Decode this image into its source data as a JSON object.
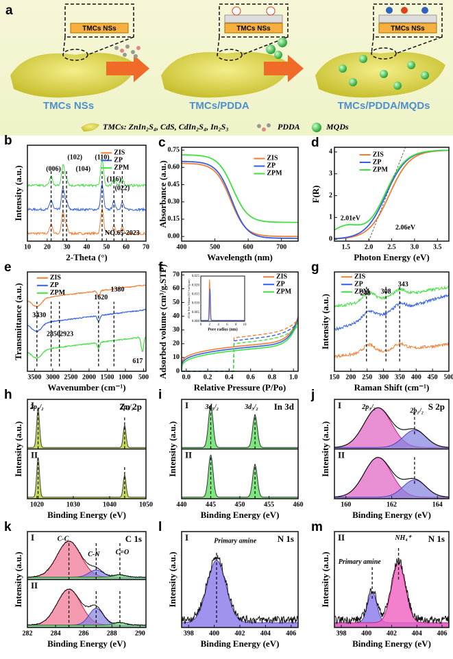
{
  "figure": {
    "a": {
      "label": "a",
      "boxes": [
        "TMCs NSs",
        "TMCs NSs",
        "TMCs NSs"
      ],
      "captions": [
        "TMCs NSs",
        "TMCs/PDDA",
        "TMCs/PDDA/MQDs"
      ],
      "legend": [
        "TMCs: ZnIn₂S₄, CdS, CdIn₂S₄, In₂S₃",
        "PDDA",
        "MQDs"
      ]
    },
    "plots": [
      {
        "label": "b",
        "xlabel": "2-Theta (°)",
        "ylabel": "Intensity (a.u.)",
        "xticks": [
          10,
          20,
          30,
          40,
          50,
          60,
          70
        ],
        "legend": [
          "ZIS",
          "ZP",
          "ZPM"
        ],
        "notes": [
          "(006)",
          "(102)",
          "(104)",
          "(110)",
          "(116)",
          "(022)",
          "NO.65-2023"
        ]
      },
      {
        "label": "c",
        "xlabel": "Wavelength (nm)",
        "ylabel": "Absorbance (a.u.)",
        "xticks": [
          400,
          500,
          600,
          700
        ],
        "yticks": [
          "0.00",
          "0.15",
          "0.30",
          "0.45",
          "0.60",
          "0.75"
        ],
        "legend": [
          "ZIS",
          "ZP",
          "ZPM"
        ]
      },
      {
        "label": "d",
        "xlabel": "Photon Energy (eV)",
        "ylabel": "F(R)",
        "xticks": [
          1.5,
          "2.0",
          2.5,
          "3.0",
          3.5
        ],
        "yticks": [
          0,
          1,
          2,
          3,
          4
        ],
        "legend": [
          "ZIS",
          "ZP",
          "ZPM"
        ],
        "notes": [
          "2.01eV",
          "2.06eV"
        ]
      },
      {
        "label": "e",
        "xlabel": "Wavenumber (cm⁻¹)",
        "ylabel": "Transmittance (a.u.)",
        "xticks": [
          3500,
          3000,
          2500,
          2000,
          1500,
          1000,
          500
        ],
        "legend": [
          "ZIS",
          "ZP",
          "ZPM"
        ],
        "notes": [
          "3430",
          "2850",
          "2923",
          "1620",
          "1380",
          "617"
        ]
      },
      {
        "label": "f",
        "xlabel": "Relative Pressure (P/Po)",
        "ylabel": "Adsorbed volume (cm³/g.STP)",
        "xticks": [
          "0.0",
          0.2,
          0.4,
          0.6,
          0.8,
          "1.0"
        ],
        "yticks": [
          0,
          10,
          20,
          30,
          40,
          50,
          60,
          70
        ],
        "legend": [
          "ZIS",
          "ZP",
          "ZPM"
        ],
        "inset": {
          "xlabel": "Pore radius (nm)",
          "ylabel": "dV/dr Pore Volume (10⁻³cm³/g.nm)",
          "xticks": [
            0,
            2,
            4,
            6,
            8,
            10
          ],
          "yticks": [
            "0.000",
            "0.005",
            "0.010",
            "0.015",
            "0.020",
            "0.025"
          ]
        }
      },
      {
        "label": "g",
        "xlabel": "Raman Shift (cm⁻¹)",
        "ylabel": "Intensity (a.u.)",
        "xticks": [
          150,
          200,
          250,
          300,
          350,
          400,
          450,
          500
        ],
        "legend": [
          "ZIS",
          "ZP",
          "ZPM"
        ],
        "notes": [
          "248",
          "308",
          "343"
        ]
      },
      {
        "label": "h",
        "title": "Zn 2p",
        "xlabel": "Binding Energy (eV)",
        "ylabel": "Intensity (a.u.)",
        "xticks": [
          1020,
          1030,
          1040,
          1050
        ],
        "sub": [
          "I",
          "II"
        ],
        "notes": [
          "2p₃/₂",
          "2p₁/₂"
        ]
      },
      {
        "label": "i",
        "title": "In 3d",
        "xlabel": "Binding Energy (eV)",
        "ylabel": "Intensity (a.u.)",
        "xticks": [
          440,
          445,
          450,
          455,
          460
        ],
        "sub": [
          "I",
          "II"
        ],
        "notes": [
          "3d₅/₂",
          "3d₃/₂"
        ]
      },
      {
        "label": "j",
        "title": "S 2p",
        "xlabel": "Binding Energy (eV)",
        "ylabel": "Intensity (a.u.)",
        "xticks": [
          160,
          162,
          164
        ],
        "sub": [
          "I",
          "II"
        ],
        "notes": [
          "2p₃/₂",
          "2p₁/₂"
        ]
      },
      {
        "label": "k",
        "title": "C 1s",
        "xlabel": "Binding Energy (eV)",
        "ylabel": "Intensity (a.u.)",
        "xticks": [
          282,
          284,
          286,
          288,
          290
        ],
        "sub": [
          "I",
          "II"
        ],
        "notes": [
          "C-C",
          "C-N",
          "C=O"
        ]
      },
      {
        "label": "l",
        "title": "N 1s",
        "xlabel": "Binding Energy (eV)",
        "ylabel": "Intensity (a.u.)",
        "xticks": [
          398,
          400,
          402,
          404,
          406
        ],
        "sub": [
          "I"
        ],
        "notes": [
          "Primary amine"
        ]
      },
      {
        "label": "m",
        "title": "N 1s",
        "xlabel": "Binding Energy (eV)",
        "ylabel": "Intensity (a.u.)",
        "xticks": [
          398,
          400,
          402,
          404,
          406
        ],
        "sub": [
          "II"
        ],
        "notes": [
          "Primary amine",
          "NH₄⁺"
        ]
      }
    ]
  }
}
